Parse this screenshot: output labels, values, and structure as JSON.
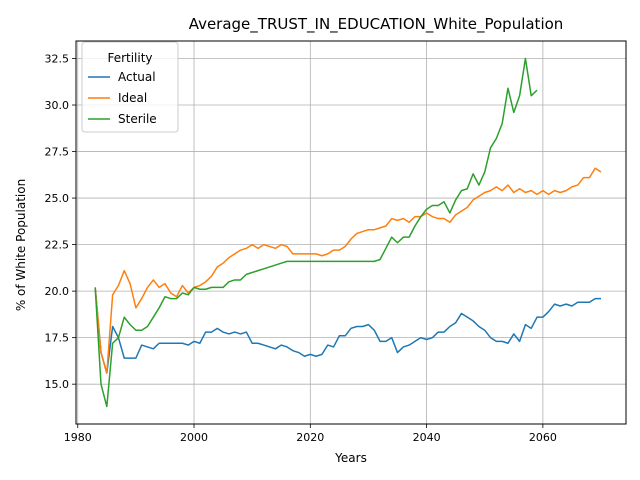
{
  "chart_data": {
    "type": "line",
    "title": "Average_TRUST_IN_EDUCATION_White_Population",
    "xlabel": "Years",
    "ylabel": "% of White Population",
    "xlim": [
      1979.7,
      2074.3
    ],
    "ylim": [
      12.86,
      33.44
    ],
    "xticks": [
      1980,
      2000,
      2020,
      2040,
      2060
    ],
    "xtick_labels": [
      "1980",
      "2000",
      "2020",
      "2040",
      "2060"
    ],
    "yticks": [
      15.0,
      17.5,
      20.0,
      22.5,
      25.0,
      27.5,
      30.0,
      32.5
    ],
    "ytick_labels": [
      "15.0",
      "17.5",
      "20.0",
      "22.5",
      "25.0",
      "27.5",
      "30.0",
      "32.5"
    ],
    "grid": true,
    "legend": {
      "title": "Fertility",
      "placement": "top-left"
    },
    "series": [
      {
        "name": "Actual",
        "color": "#1f77b4",
        "x": [
          1983,
          1984,
          1985,
          1986,
          1987,
          1988,
          1989,
          1990,
          1991,
          1992,
          1993,
          1994,
          1995,
          1996,
          1997,
          1998,
          1999,
          2000,
          2001,
          2002,
          2003,
          2004,
          2005,
          2006,
          2007,
          2008,
          2009,
          2010,
          2011,
          2012,
          2013,
          2014,
          2015,
          2016,
          2017,
          2018,
          2019,
          2020,
          2021,
          2022,
          2023,
          2024,
          2025,
          2026,
          2027,
          2028,
          2029,
          2030,
          2031,
          2032,
          2033,
          2034,
          2035,
          2036,
          2037,
          2038,
          2039,
          2040,
          2041,
          2042,
          2043,
          2044,
          2045,
          2046,
          2047,
          2048,
          2049,
          2050,
          2051,
          2052,
          2053,
          2054,
          2055,
          2056,
          2057,
          2058,
          2059,
          2060,
          2061,
          2062,
          2063,
          2064,
          2065,
          2066,
          2067,
          2068,
          2069,
          2070
        ],
        "values": [
          20.2,
          16.7,
          15.6,
          18.1,
          17.5,
          16.4,
          16.4,
          16.4,
          17.1,
          17.0,
          16.9,
          17.2,
          17.2,
          17.2,
          17.2,
          17.2,
          17.1,
          17.3,
          17.2,
          17.8,
          17.8,
          18.0,
          17.8,
          17.7,
          17.8,
          17.7,
          17.8,
          17.2,
          17.2,
          17.1,
          17.0,
          16.9,
          17.1,
          17.0,
          16.8,
          16.7,
          16.5,
          16.6,
          16.5,
          16.6,
          17.1,
          17.0,
          17.6,
          17.6,
          18.0,
          18.1,
          18.1,
          18.2,
          17.9,
          17.3,
          17.3,
          17.5,
          16.7,
          17.0,
          17.1,
          17.3,
          17.5,
          17.4,
          17.5,
          17.8,
          17.8,
          18.1,
          18.3,
          18.8,
          18.6,
          18.4,
          18.1,
          17.9,
          17.5,
          17.3,
          17.3,
          17.2,
          17.7,
          17.3,
          18.2,
          18.0,
          18.6,
          18.6,
          18.9,
          19.3,
          19.2,
          19.3,
          19.2,
          19.4,
          19.4,
          19.4,
          19.6,
          19.6
        ]
      },
      {
        "name": "Ideal",
        "color": "#ff7f0e",
        "x": [
          1983,
          1984,
          1985,
          1986,
          1987,
          1988,
          1989,
          1990,
          1991,
          1992,
          1993,
          1994,
          1995,
          1996,
          1997,
          1998,
          1999,
          2000,
          2001,
          2002,
          2003,
          2004,
          2005,
          2006,
          2007,
          2008,
          2009,
          2010,
          2011,
          2012,
          2013,
          2014,
          2015,
          2016,
          2017,
          2018,
          2019,
          2020,
          2021,
          2022,
          2023,
          2024,
          2025,
          2026,
          2027,
          2028,
          2029,
          2030,
          2031,
          2032,
          2033,
          2034,
          2035,
          2036,
          2037,
          2038,
          2039,
          2040,
          2041,
          2042,
          2043,
          2044,
          2045,
          2046,
          2047,
          2048,
          2049,
          2050,
          2051,
          2052,
          2053,
          2054,
          2055,
          2056,
          2057,
          2058,
          2059,
          2060,
          2061,
          2062,
          2063,
          2064,
          2065,
          2066,
          2067,
          2068,
          2069,
          2070
        ],
        "values": [
          20.2,
          16.7,
          15.6,
          19.8,
          20.3,
          21.1,
          20.4,
          19.1,
          19.6,
          20.2,
          20.6,
          20.2,
          20.4,
          19.9,
          19.7,
          20.3,
          19.9,
          20.2,
          20.3,
          20.5,
          20.8,
          21.3,
          21.5,
          21.8,
          22.0,
          22.2,
          22.3,
          22.5,
          22.3,
          22.5,
          22.4,
          22.3,
          22.5,
          22.4,
          22.0,
          22.0,
          22.0,
          22.0,
          22.0,
          21.9,
          22.0,
          22.2,
          22.2,
          22.4,
          22.8,
          23.1,
          23.2,
          23.3,
          23.3,
          23.4,
          23.5,
          23.9,
          23.8,
          23.9,
          23.7,
          24.0,
          24.0,
          24.2,
          24.0,
          23.9,
          23.9,
          23.7,
          24.1,
          24.3,
          24.5,
          24.9,
          25.1,
          25.3,
          25.4,
          25.6,
          25.4,
          25.7,
          25.3,
          25.5,
          25.3,
          25.4,
          25.2,
          25.4,
          25.2,
          25.4,
          25.3,
          25.4,
          25.6,
          25.7,
          26.1,
          26.1,
          26.6,
          26.4
        ]
      },
      {
        "name": "Sterile",
        "color": "#2ca02c",
        "x": [
          1983,
          1984,
          1985,
          1986,
          1987,
          1988,
          1989,
          1990,
          1991,
          1992,
          1993,
          1994,
          1995,
          1996,
          1997,
          1998,
          1999,
          2000,
          2001,
          2002,
          2003,
          2004,
          2005,
          2006,
          2007,
          2008,
          2009,
          2010,
          2011,
          2012,
          2013,
          2014,
          2015,
          2016,
          2017,
          2018,
          2019,
          2020,
          2021,
          2022,
          2023,
          2024,
          2025,
          2026,
          2027,
          2028,
          2029,
          2030,
          2031,
          2032,
          2033,
          2034,
          2035,
          2036,
          2037,
          2038,
          2039,
          2040,
          2041,
          2042,
          2043,
          2044,
          2045,
          2046,
          2047,
          2048,
          2049,
          2050,
          2051,
          2052,
          2053,
          2054,
          2055,
          2056,
          2057,
          2058,
          2059
        ],
        "values": [
          20.2,
          15.0,
          13.8,
          17.2,
          17.5,
          18.6,
          18.2,
          17.9,
          17.9,
          18.1,
          18.6,
          19.1,
          19.7,
          19.6,
          19.6,
          19.9,
          19.8,
          20.2,
          20.1,
          20.1,
          20.2,
          20.2,
          20.2,
          20.5,
          20.6,
          20.6,
          20.9,
          21.0,
          21.1,
          21.2,
          21.3,
          21.4,
          21.5,
          21.6,
          21.6,
          21.6,
          21.6,
          21.6,
          21.6,
          21.6,
          21.6,
          21.6,
          21.6,
          21.6,
          21.6,
          21.6,
          21.6,
          21.6,
          21.6,
          21.7,
          22.3,
          22.9,
          22.6,
          22.9,
          22.9,
          23.5,
          24.0,
          24.4,
          24.6,
          24.6,
          24.8,
          24.2,
          24.9,
          25.4,
          25.5,
          26.3,
          25.7,
          26.4,
          27.7,
          28.2,
          29.0,
          30.9,
          29.6,
          30.5,
          32.5,
          30.5,
          30.8
        ]
      }
    ]
  }
}
